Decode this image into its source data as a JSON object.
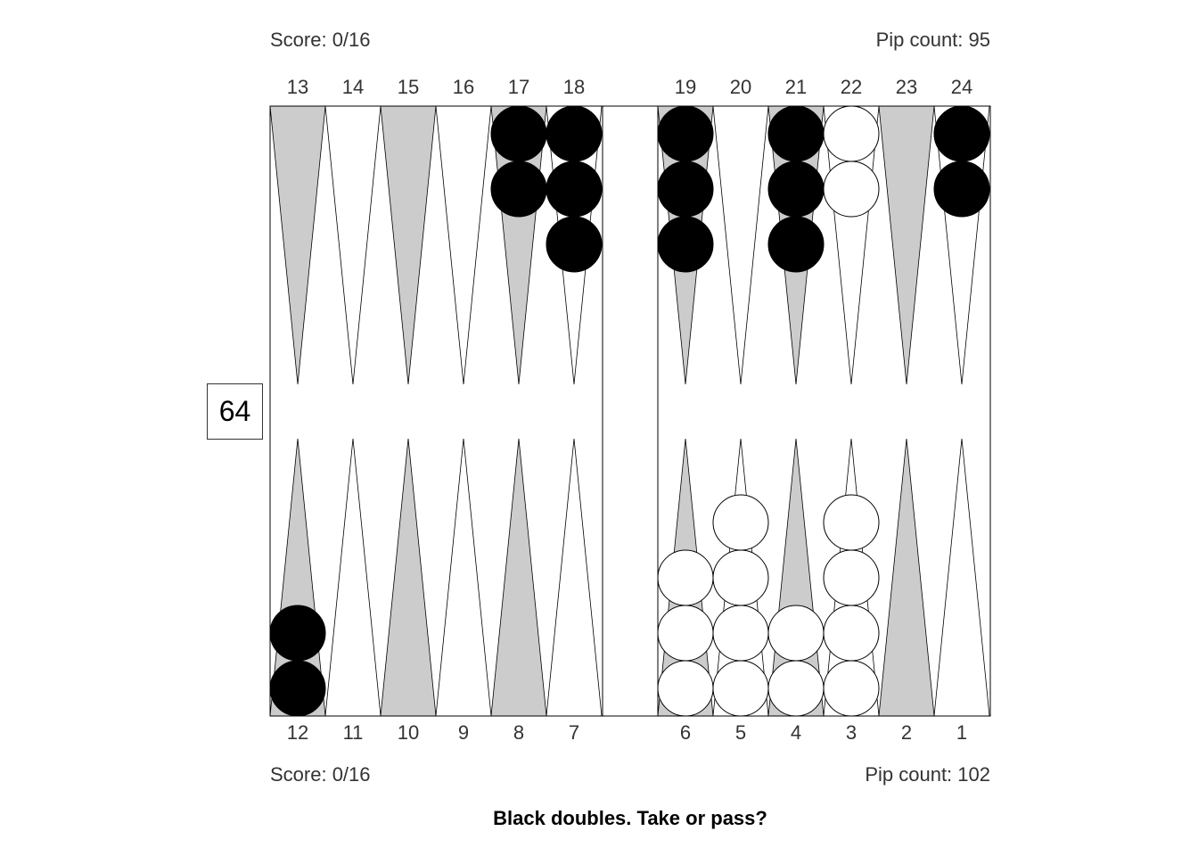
{
  "top_player": {
    "score": "Score: 0/16",
    "pip_count": "Pip count: 95"
  },
  "bottom_player": {
    "score": "Score: 0/16",
    "pip_count": "Pip count: 102"
  },
  "cube_value": "64",
  "prompt": "Black doubles. Take or pass?",
  "colors": {
    "light_point": "#ffffff",
    "dark_point": "#cccccc",
    "black_checker": "#000000",
    "white_checker": "#ffffff",
    "outline": "#000000"
  },
  "position": {
    "black": {
      "24": 2,
      "21": 3,
      "19": 3,
      "18": 3,
      "17": 2,
      "12": 2
    },
    "white": {
      "22": 2,
      "6": 3,
      "5": 4,
      "4": 2,
      "3": 4
    }
  }
}
